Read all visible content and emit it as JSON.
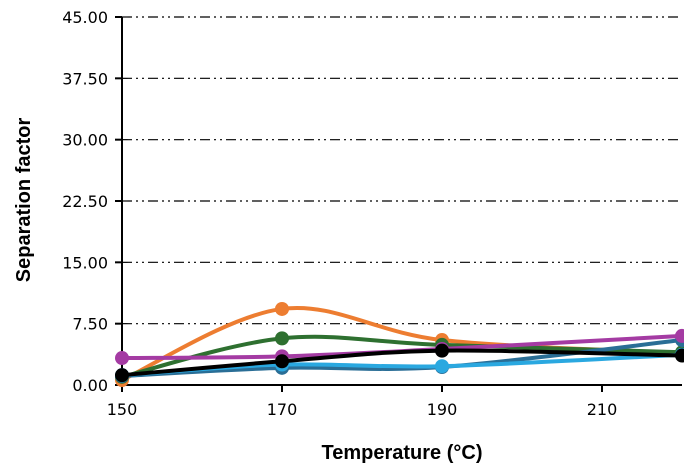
{
  "chart_data": {
    "type": "line",
    "title": "",
    "xlabel": "Temperature (°C)",
    "ylabel": "Separation factor",
    "x": [
      150,
      170,
      190,
      220
    ],
    "xticks": [
      "150",
      "170",
      "190",
      "210"
    ],
    "xtick_values": [
      150,
      170,
      190,
      210
    ],
    "xlim": [
      150,
      220
    ],
    "ylim": [
      0,
      45
    ],
    "yticks": [
      "0.00",
      "7.50",
      "15.00",
      "22.50",
      "30.00",
      "37.50",
      "45.00"
    ],
    "ytick_values": [
      0,
      7.5,
      15,
      22.5,
      30,
      37.5,
      45
    ],
    "grid": true,
    "series": [
      {
        "color": "#ED7D31",
        "values": [
          0.6,
          9.3,
          5.5,
          3.9
        ]
      },
      {
        "color": "#2E7030",
        "values": [
          1.0,
          5.7,
          4.9,
          4.0
        ]
      },
      {
        "color": "#2A6E96",
        "values": [
          1.1,
          2.1,
          2.2,
          5.5
        ]
      },
      {
        "color": "#2AA8E0",
        "values": [
          1.2,
          2.5,
          2.3,
          3.7
        ]
      },
      {
        "color": "#A43BA3",
        "values": [
          3.3,
          3.5,
          4.4,
          6.0
        ]
      },
      {
        "color": "#000000",
        "values": [
          1.2,
          2.9,
          4.2,
          3.6
        ]
      }
    ]
  }
}
